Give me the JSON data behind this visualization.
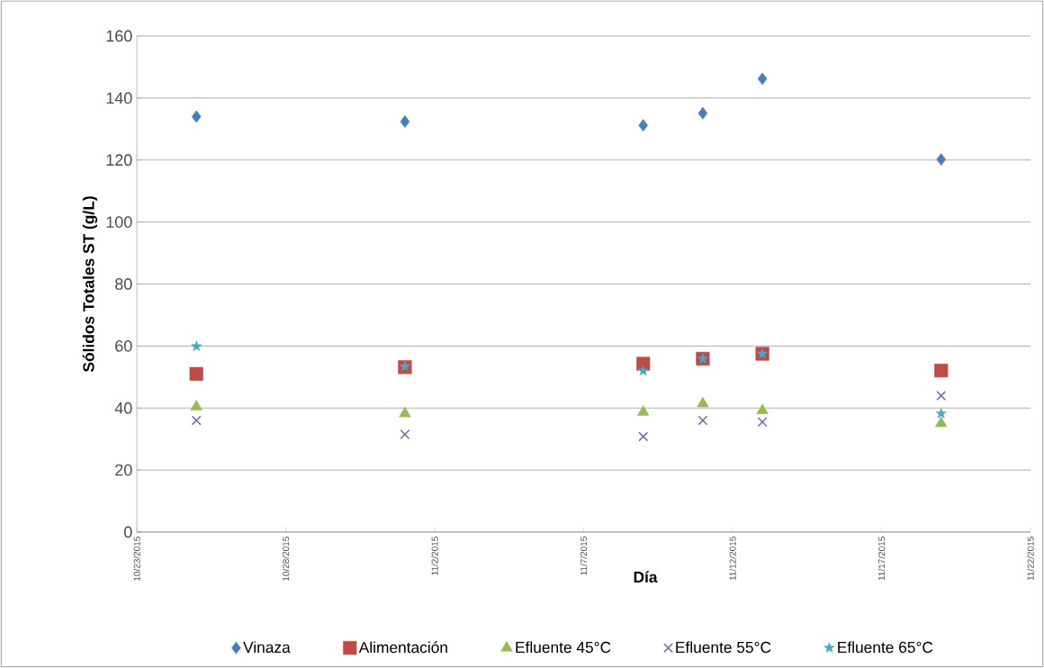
{
  "chart_data": {
    "type": "scatter",
    "xlabel": "Día",
    "ylabel": "Sólidos Totales ST (g/L)",
    "x": [
      "2015-10-25",
      "2015-11-01",
      "2015-11-09",
      "2015-11-11",
      "2015-11-13",
      "2015-11-19"
    ],
    "series": [
      {
        "name": "Vinaza",
        "color": "#4a7ebb",
        "marker": "diamond",
        "values": [
          134,
          132.4,
          131.2,
          135.1,
          146.2,
          120.2
        ]
      },
      {
        "name": "Alimentación",
        "color": "#be4b48",
        "marker": "square",
        "values": [
          51,
          53.2,
          54.3,
          55.9,
          57.5,
          52.1
        ]
      },
      {
        "name": "Efluente 45°C",
        "color": "#98b954",
        "marker": "triangle",
        "values": [
          40.4,
          38.2,
          38.7,
          41.4,
          39.2,
          35
        ]
      },
      {
        "name": "Efluente 55°C",
        "color": "#7d60a0",
        "marker": "cross",
        "values": [
          36,
          31.5,
          30.8,
          36,
          35.5,
          44
        ]
      },
      {
        "name": "Efluente 65°C",
        "color": "#46aac5",
        "marker": "star",
        "values": [
          59.9,
          53.4,
          52,
          55.9,
          57.5,
          38.2
        ]
      }
    ],
    "xlim": [
      "2015-10-23",
      "2015-11-22"
    ],
    "xticks": [
      {
        "value": "2015-10-23",
        "label": "10/23/2015"
      },
      {
        "value": "2015-10-28",
        "label": "10/28/2015"
      },
      {
        "value": "2015-11-02",
        "label": "11/2/2015"
      },
      {
        "value": "2015-11-07",
        "label": "11/7/2015"
      },
      {
        "value": "2015-11-12",
        "label": "11/12/2015"
      },
      {
        "value": "2015-11-17",
        "label": "11/17/2015"
      },
      {
        "value": "2015-11-22",
        "label": "11/22/2015"
      }
    ],
    "ylim": [
      0,
      160
    ],
    "yticks": [
      0,
      20,
      40,
      60,
      80,
      100,
      120,
      140,
      160
    ],
    "grid": "y",
    "legend": "bottom"
  }
}
